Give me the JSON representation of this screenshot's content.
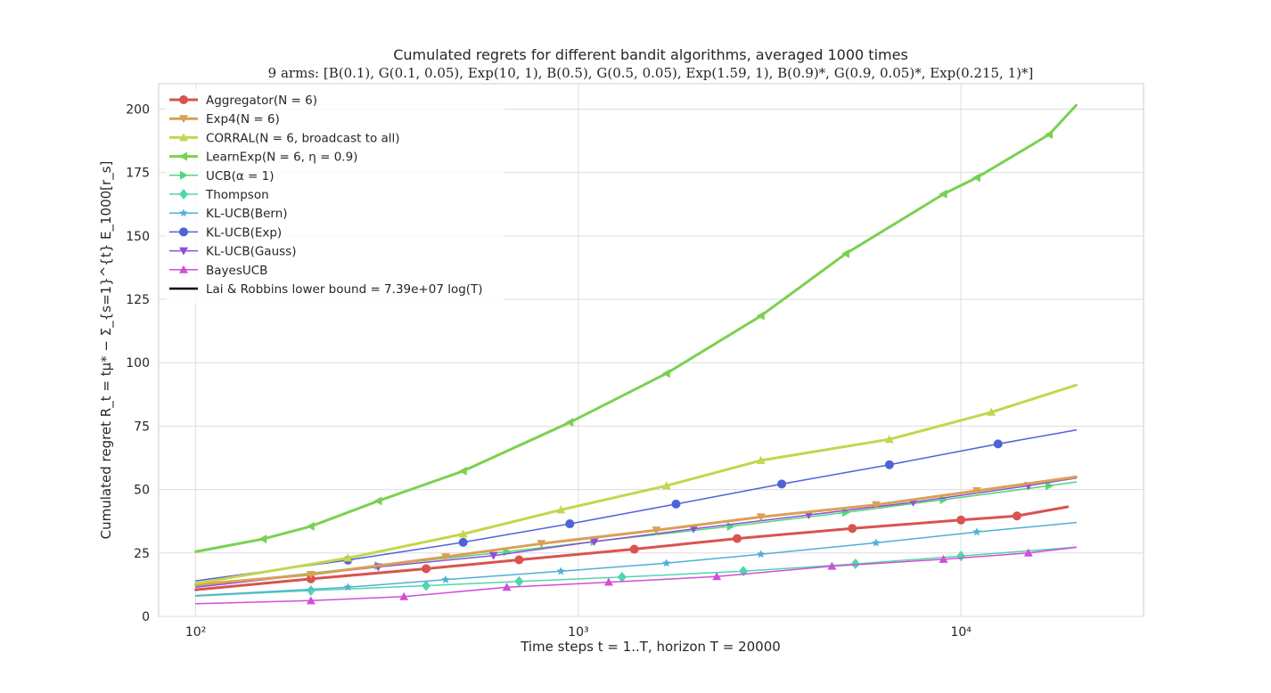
{
  "chart_data": {
    "type": "line",
    "title": "Cumulated regrets for different bandit algorithms, averaged 1000 times",
    "subtitle": "9 arms: [B(0.1), G(0.1, 0.05), Exp(10, 1), B(0.5), G(0.5, 0.05), Exp(1.59, 1), B(0.9)*, G(0.9, 0.05)*, Exp(0.215, 1)*]",
    "xlabel": "Time steps t = 1..T, horizon T = 20000",
    "ylabel": "Cumulated regret R_t = tμ* − Σ_{s=1}^{t} E_1000[r_s]",
    "xscale": "log",
    "xlim": [
      80,
      30000
    ],
    "ylim": [
      0,
      210
    ],
    "xticks": [
      100,
      1000,
      10000
    ],
    "xtick_labels": [
      "10²",
      "10³",
      "10⁴"
    ],
    "yticks": [
      0,
      25,
      50,
      75,
      100,
      125,
      150,
      175,
      200
    ],
    "grid": true,
    "legend_position": "top-left",
    "series": [
      {
        "name": "Aggregator(N = 6)",
        "color": "#d9534f",
        "marker": "circle",
        "width": 3,
        "points": [
          [
            100,
            10.5
          ],
          [
            200,
            14.8
          ],
          [
            400,
            18.8
          ],
          [
            700,
            22.3
          ],
          [
            1400,
            26.5
          ],
          [
            2600,
            30.7
          ],
          [
            5200,
            34.7
          ],
          [
            10000,
            38
          ],
          [
            14000,
            39.6
          ],
          [
            19000,
            43.2
          ]
        ]
      },
      {
        "name": "Exp4(N = 6)",
        "color": "#d9a057",
        "marker": "triangle-down",
        "width": 3,
        "points": [
          [
            100,
            12.5
          ],
          [
            200,
            16.5
          ],
          [
            450,
            23.5
          ],
          [
            800,
            28.7
          ],
          [
            1600,
            34
          ],
          [
            3000,
            39.2
          ],
          [
            6000,
            44
          ],
          [
            11000,
            49.5
          ],
          [
            20000,
            55
          ]
        ]
      },
      {
        "name": "CORRAL(N = 6, broadcast to all)",
        "color": "#c5d54e",
        "marker": "triangle-up",
        "width": 3,
        "points": [
          [
            100,
            13
          ],
          [
            250,
            23
          ],
          [
            500,
            32.5
          ],
          [
            900,
            42
          ],
          [
            1700,
            51.5
          ],
          [
            3000,
            61.5
          ],
          [
            6500,
            69.8
          ],
          [
            12000,
            80.5
          ],
          [
            20000,
            91.2
          ]
        ]
      },
      {
        "name": "LearnExp(N = 6, η = 0.9)",
        "color": "#7ad150",
        "marker": "triangle-left",
        "width": 3,
        "points": [
          [
            100,
            25.5
          ],
          [
            150,
            30.5
          ],
          [
            200,
            35.5
          ],
          [
            300,
            45.5
          ],
          [
            500,
            57.3
          ],
          [
            950,
            76.5
          ],
          [
            1700,
            95.8
          ],
          [
            3000,
            118.5
          ],
          [
            5000,
            143
          ],
          [
            9000,
            166.5
          ],
          [
            11000,
            173
          ],
          [
            17000,
            190
          ],
          [
            20000,
            201.5
          ]
        ]
      },
      {
        "name": "UCB(α = 1)",
        "color": "#4ed77a",
        "marker": "triangle-right",
        "width": 1.5,
        "points": [
          [
            100,
            12
          ],
          [
            300,
            20
          ],
          [
            650,
            25.5
          ],
          [
            1100,
            29.5
          ],
          [
            2500,
            35.5
          ],
          [
            5000,
            41
          ],
          [
            9000,
            46
          ],
          [
            17000,
            51.5
          ],
          [
            20000,
            53
          ]
        ]
      },
      {
        "name": "Thompson",
        "color": "#4fd6ac",
        "marker": "diamond",
        "width": 1.5,
        "points": [
          [
            100,
            8
          ],
          [
            200,
            10.2
          ],
          [
            400,
            12.1
          ],
          [
            700,
            13.8
          ],
          [
            1300,
            15.5
          ],
          [
            2700,
            17.8
          ],
          [
            5300,
            20.7
          ],
          [
            10000,
            23.8
          ],
          [
            20000,
            27.3
          ]
        ]
      },
      {
        "name": "KL-UCB(Bern)",
        "color": "#4fb0d6",
        "marker": "star",
        "width": 1.5,
        "points": [
          [
            100,
            8.2
          ],
          [
            250,
            11.5
          ],
          [
            450,
            14.5
          ],
          [
            900,
            17.8
          ],
          [
            1700,
            21
          ],
          [
            3000,
            24.5
          ],
          [
            6000,
            29
          ],
          [
            11000,
            33.3
          ],
          [
            20000,
            37
          ]
        ]
      },
      {
        "name": "KL-UCB(Exp)",
        "color": "#4f62d6",
        "marker": "circle",
        "width": 1.5,
        "points": [
          [
            100,
            14
          ],
          [
            250,
            22.2
          ],
          [
            500,
            29.2
          ],
          [
            950,
            36.5
          ],
          [
            1800,
            44.3
          ],
          [
            3400,
            52.2
          ],
          [
            6500,
            59.8
          ],
          [
            12500,
            68
          ],
          [
            20000,
            73.5
          ]
        ]
      },
      {
        "name": "KL-UCB(Gauss)",
        "color": "#8e4fd6",
        "marker": "triangle-down",
        "width": 1.5,
        "points": [
          [
            100,
            11.5
          ],
          [
            300,
            19.5
          ],
          [
            600,
            24
          ],
          [
            1100,
            29.5
          ],
          [
            2000,
            34.5
          ],
          [
            4000,
            40
          ],
          [
            7500,
            45
          ],
          [
            15000,
            51.5
          ],
          [
            20000,
            54.5
          ]
        ]
      },
      {
        "name": "BayesUCB",
        "color": "#d14fd6",
        "marker": "triangle-up",
        "width": 1.5,
        "points": [
          [
            100,
            5
          ],
          [
            200,
            6.2
          ],
          [
            350,
            7.8
          ],
          [
            650,
            11.5
          ],
          [
            1200,
            13.5
          ],
          [
            2300,
            15.7
          ],
          [
            4600,
            19.8
          ],
          [
            9000,
            22.5
          ],
          [
            15000,
            25
          ],
          [
            20000,
            27.2
          ]
        ]
      },
      {
        "name": "Lai & Robbins lower bound = 7.39e+07 log(T)",
        "color": "#000000",
        "marker": "none",
        "width": 2.5,
        "points": []
      }
    ]
  }
}
